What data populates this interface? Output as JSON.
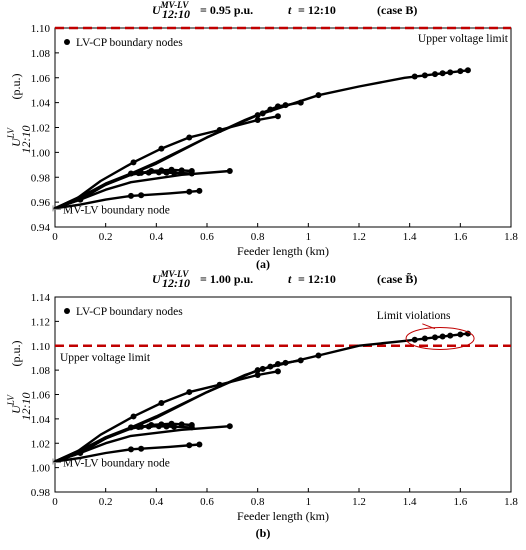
{
  "chart_data": [
    {
      "type": "line",
      "panel_label": "(a)",
      "header": {
        "u_symbol": "U",
        "u_subscript": "12:10",
        "u_superscript": "MV-LV",
        "u_value": "= 0.95 p.u.",
        "t_symbol": "t",
        "t_value": "= 12:10",
        "case": "(case B)"
      },
      "xlabel": "Feeder length (km)",
      "ylabel": {
        "symbol": "U",
        "sub": "12:10",
        "sup": "LV",
        "unit": "(p.u.)"
      },
      "xlim": [
        0,
        1.8
      ],
      "ylim": [
        0.94,
        1.1
      ],
      "xticks": [
        "0",
        "0.2",
        "0.4",
        "0.6",
        "0.8",
        "1",
        "1.2",
        "1.4",
        "1.6",
        "1.8"
      ],
      "yticks": [
        "0.94",
        "0.96",
        "0.98",
        "1.00",
        "1.02",
        "1.04",
        "1.06",
        "1.08",
        "1.10"
      ],
      "legend": "LV-CP boundary nodes",
      "limit_label": "Upper voltage limit",
      "limit_value": 1.1,
      "node_label": "MV-LV boundary node",
      "node_value": 0.955,
      "series": [
        {
          "x": [
            0,
            0.08,
            0.18,
            0.31,
            0.42,
            0.53,
            0.65,
            0.8,
            0.88
          ],
          "y": [
            0.955,
            0.962,
            0.977,
            0.992,
            1.003,
            1.012,
            1.018,
            1.026,
            1.029
          ],
          "markers": [
            0.31,
            0.42,
            0.53,
            0.65,
            0.8,
            0.88
          ]
        },
        {
          "x": [
            0,
            0.2,
            0.4,
            0.6,
            0.8,
            1.04,
            1.2,
            1.38,
            1.63
          ],
          "y": [
            0.955,
            0.974,
            0.991,
            1.012,
            1.03,
            1.046,
            1.053,
            1.06,
            1.066
          ],
          "markers": [
            0.8,
            0.82,
            1.04,
            1.42,
            1.46,
            1.5,
            1.53,
            1.56,
            1.6,
            1.63
          ]
        },
        {
          "x": [
            0,
            0.2,
            0.4,
            0.6,
            0.75,
            0.88,
            0.97
          ],
          "y": [
            0.955,
            0.974,
            0.992,
            1.012,
            1.026,
            1.037,
            1.04
          ],
          "markers": [
            0.85,
            0.88,
            0.91,
            0.97
          ]
        },
        {
          "x": [
            0,
            0.1,
            0.2,
            0.3,
            0.38,
            0.46,
            0.54
          ],
          "y": [
            0.955,
            0.962,
            0.974,
            0.982,
            0.985,
            0.986,
            0.985
          ],
          "markers": [
            0.34,
            0.38,
            0.42,
            0.46,
            0.5,
            0.54
          ]
        },
        {
          "x": [
            0,
            0.1,
            0.2,
            0.3,
            0.4,
            0.54
          ],
          "y": [
            0.955,
            0.964,
            0.975,
            0.983,
            0.984,
            0.983
          ],
          "markers": [
            0.3,
            0.33,
            0.37,
            0.41,
            0.44,
            0.47,
            0.54
          ]
        },
        {
          "x": [
            0,
            0.1,
            0.2,
            0.3,
            0.5,
            0.69
          ],
          "y": [
            0.955,
            0.962,
            0.97,
            0.976,
            0.982,
            0.985
          ],
          "markers": [
            0.1,
            0.69
          ]
        },
        {
          "x": [
            0,
            0.1,
            0.2,
            0.3,
            0.45,
            0.57
          ],
          "y": [
            0.955,
            0.958,
            0.962,
            0.965,
            0.967,
            0.969
          ],
          "markers": [
            0.3,
            0.34,
            0.53,
            0.57
          ]
        }
      ]
    },
    {
      "type": "line",
      "panel_label": "(b)",
      "header": {
        "u_symbol": "U",
        "u_subscript": "12:10",
        "u_superscript": "MV-LV",
        "u_value": "= 1.00 p.u.",
        "t_symbol": "t",
        "t_value": "= 12:10",
        "case": "(case B̃)"
      },
      "xlabel": "Feeder length (km)",
      "ylabel": {
        "symbol": "U",
        "sub": "12:10",
        "sup": "LV",
        "unit": "(p.u.)"
      },
      "xlim": [
        0,
        1.8
      ],
      "ylim": [
        0.98,
        1.14
      ],
      "xticks": [
        "0",
        "0.2",
        "0.4",
        "0.6",
        "0.8",
        "1",
        "1.2",
        "1.4",
        "1.6",
        "1.8"
      ],
      "yticks": [
        "0.98",
        "1.00",
        "1.02",
        "1.04",
        "1.06",
        "1.08",
        "1.10",
        "1.12",
        "1.14"
      ],
      "legend": "LV-CP boundary nodes",
      "limit_label": "Upper voltage limit",
      "limit_value": 1.1,
      "violation_label": "Limit violations",
      "node_label": "MV-LV boundary node",
      "node_value": 1.005,
      "series": [
        {
          "x": [
            0,
            0.08,
            0.18,
            0.31,
            0.42,
            0.53,
            0.65,
            0.8,
            0.88
          ],
          "y": [
            1.005,
            1.012,
            1.027,
            1.042,
            1.053,
            1.062,
            1.068,
            1.076,
            1.079
          ],
          "markers": [
            0.31,
            0.42,
            0.53,
            0.65,
            0.8,
            0.88
          ]
        },
        {
          "x": [
            0,
            0.2,
            0.4,
            0.6,
            0.8,
            1.04,
            1.2,
            1.38,
            1.63
          ],
          "y": [
            1.005,
            1.024,
            1.041,
            1.062,
            1.08,
            1.092,
            1.1,
            1.104,
            1.11
          ],
          "markers": [
            0.8,
            0.82,
            1.04,
            1.42,
            1.46,
            1.5,
            1.53,
            1.56,
            1.6,
            1.63
          ]
        },
        {
          "x": [
            0,
            0.2,
            0.4,
            0.6,
            0.75,
            0.88,
            0.97
          ],
          "y": [
            1.005,
            1.024,
            1.042,
            1.062,
            1.076,
            1.085,
            1.088
          ],
          "markers": [
            0.85,
            0.88,
            0.91,
            0.97
          ]
        },
        {
          "x": [
            0,
            0.1,
            0.2,
            0.3,
            0.38,
            0.46,
            0.54
          ],
          "y": [
            1.005,
            1.012,
            1.024,
            1.032,
            1.035,
            1.036,
            1.035
          ],
          "markers": [
            0.34,
            0.38,
            0.42,
            0.46,
            0.5,
            0.54
          ]
        },
        {
          "x": [
            0,
            0.1,
            0.2,
            0.3,
            0.4,
            0.54
          ],
          "y": [
            1.005,
            1.014,
            1.025,
            1.033,
            1.034,
            1.033
          ],
          "markers": [
            0.3,
            0.33,
            0.37,
            0.41,
            0.44,
            0.47,
            0.54
          ]
        },
        {
          "x": [
            0,
            0.1,
            0.2,
            0.3,
            0.5,
            0.69
          ],
          "y": [
            1.005,
            1.012,
            1.02,
            1.026,
            1.031,
            1.034
          ],
          "markers": [
            0.1,
            0.69
          ]
        },
        {
          "x": [
            0,
            0.1,
            0.2,
            0.3,
            0.45,
            0.57
          ],
          "y": [
            1.005,
            1.008,
            1.012,
            1.015,
            1.017,
            1.019
          ],
          "markers": [
            0.3,
            0.34,
            0.53,
            0.57
          ]
        }
      ]
    }
  ]
}
